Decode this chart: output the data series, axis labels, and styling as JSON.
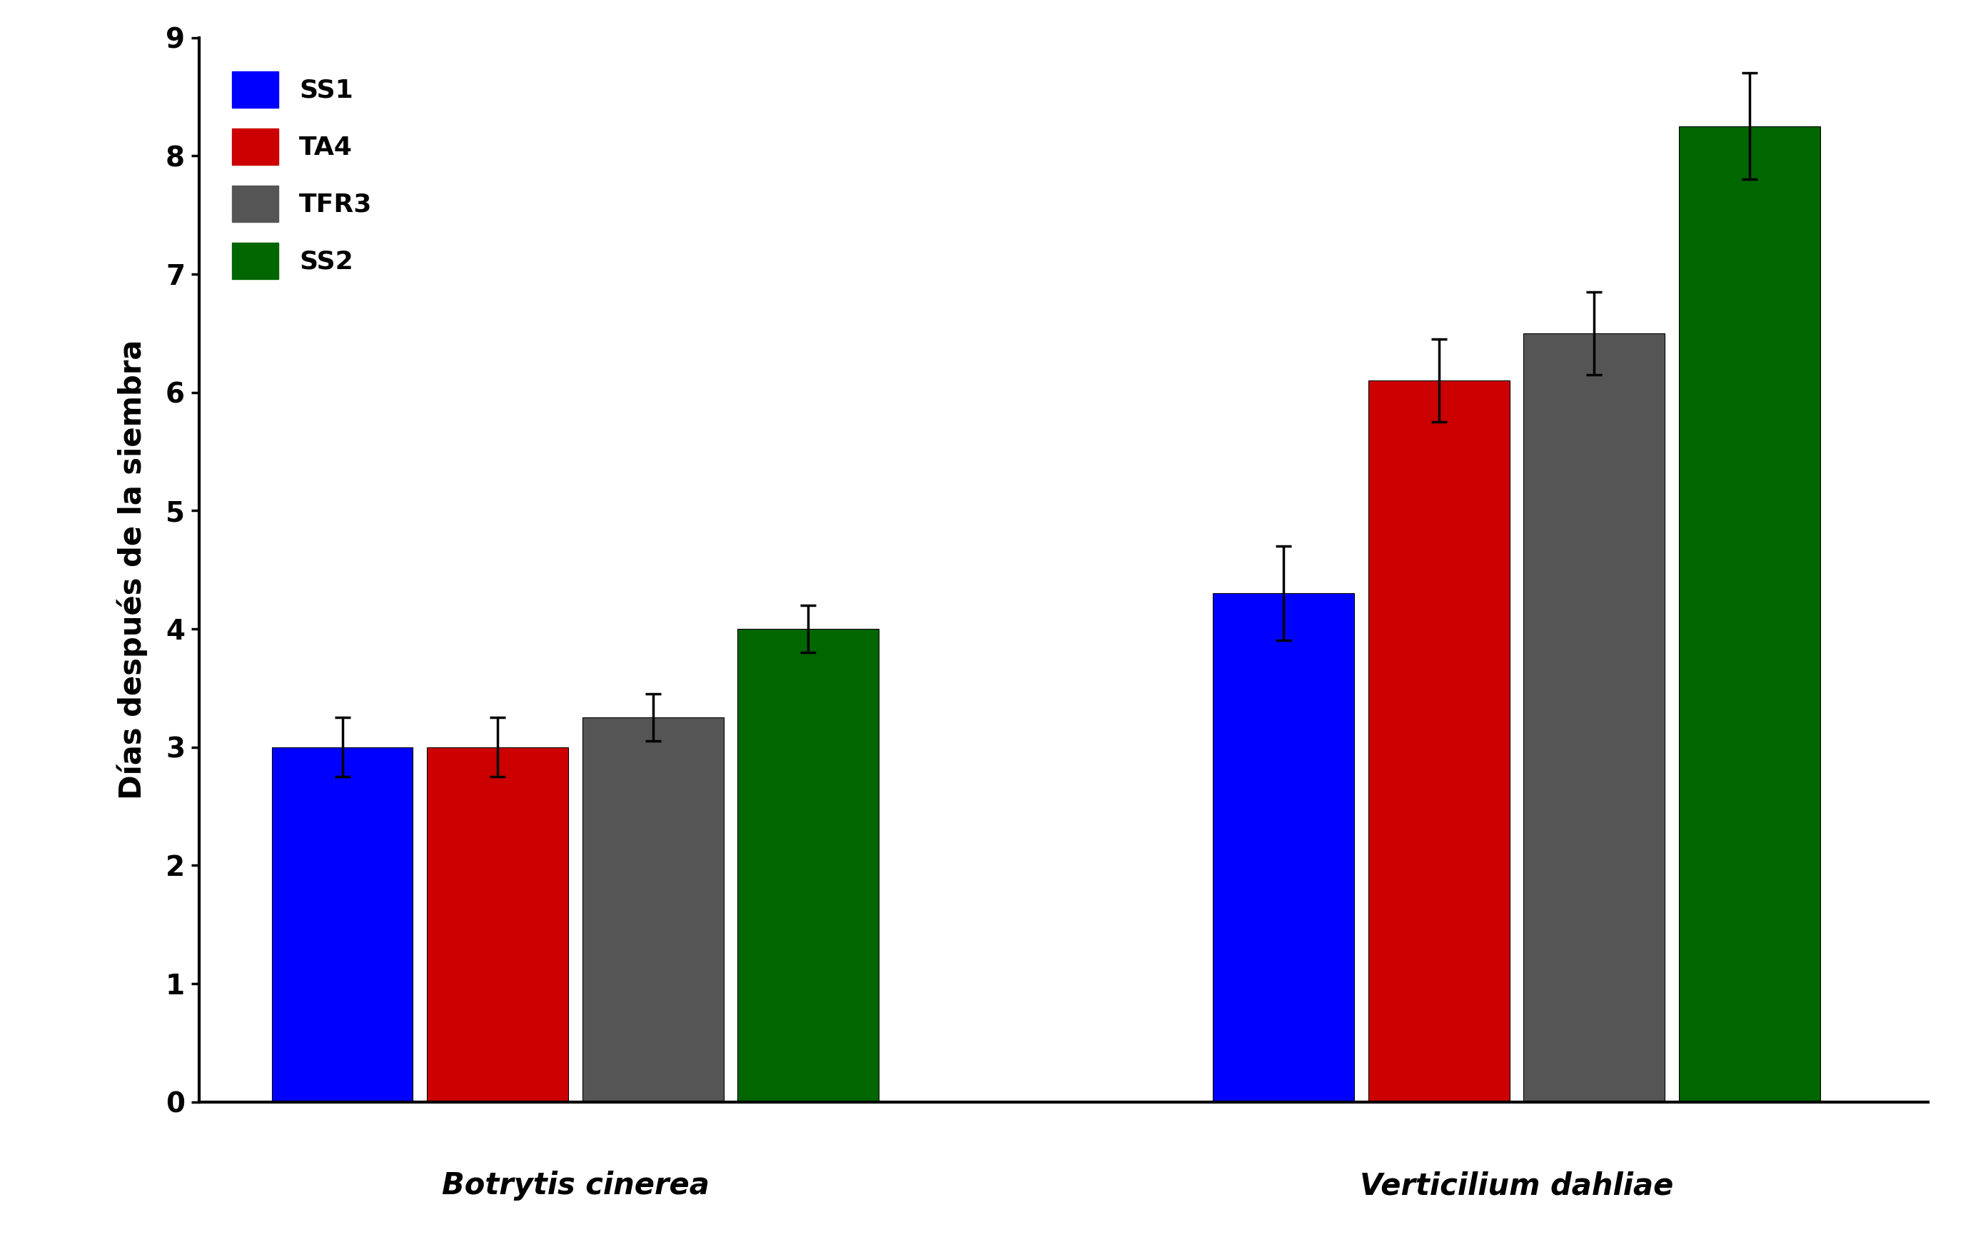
{
  "groups": [
    "Botrytis cinerea",
    "Verticilium dahliae"
  ],
  "series": [
    "SS1",
    "TA4",
    "TFR3",
    "SS2"
  ],
  "colors": [
    "#0000FF",
    "#CC0000",
    "#555555",
    "#006600"
  ],
  "values": [
    [
      3.0,
      3.0,
      3.25,
      4.0
    ],
    [
      4.3,
      6.1,
      6.5,
      8.25
    ]
  ],
  "errors": [
    [
      0.25,
      0.25,
      0.2,
      0.2
    ],
    [
      0.4,
      0.35,
      0.35,
      0.45
    ]
  ],
  "ylabel": "Días después de la siembra",
  "ylim": [
    0,
    9
  ],
  "yticks": [
    0,
    1,
    2,
    3,
    4,
    5,
    6,
    7,
    8,
    9
  ],
  "bar_width": 0.12,
  "legend_loc": "upper left",
  "background_color": "#ffffff",
  "tick_fontsize": 28,
  "label_fontsize": 30,
  "legend_fontsize": 26,
  "capsize": 8,
  "error_linewidth": 2.5
}
